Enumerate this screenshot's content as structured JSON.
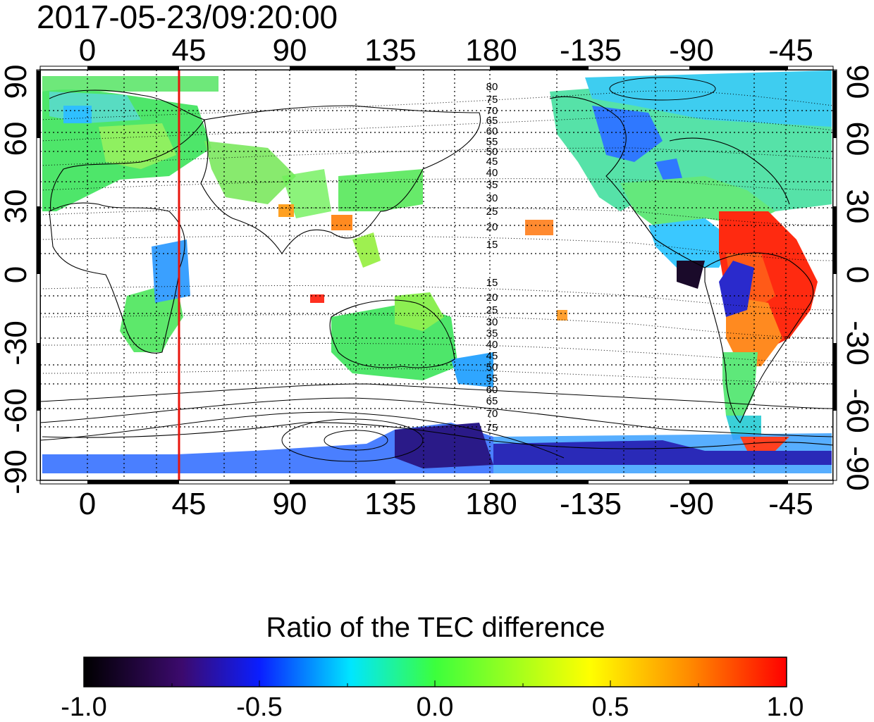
{
  "title": "2017-05-23/09:20:00",
  "map": {
    "top_lon_ticks": [
      "0",
      "45",
      "90",
      "135",
      "180",
      "-135",
      "-90",
      "-45"
    ],
    "bottom_lon_ticks": [
      "0",
      "45",
      "90",
      "135",
      "180",
      "-135",
      "-90",
      "-45"
    ],
    "left_lat_ticks": [
      "90",
      "60",
      "30",
      "0",
      "-30",
      "-60",
      "-90"
    ],
    "right_lat_ticks": [
      "90",
      "60",
      "30",
      "0",
      "-30",
      "-60",
      "-90"
    ],
    "contour_labels_north": [
      "80",
      "75",
      "70",
      "65",
      "60",
      "55",
      "50",
      "45",
      "40",
      "35",
      "30",
      "25",
      "20",
      "15"
    ],
    "contour_labels_south": [
      "15",
      "20",
      "25",
      "30",
      "35",
      "40",
      "45",
      "50",
      "55",
      "60",
      "65",
      "70",
      "75"
    ],
    "marker_longitude": 40,
    "marker_color": "#e8140c"
  },
  "colorbar": {
    "title": "Ratio of the TEC difference",
    "tick_labels": [
      "-1.0",
      "-0.5",
      "0.0",
      "0.5",
      "1.0"
    ],
    "range": [
      -1.0,
      1.0
    ],
    "colors": [
      "#000000",
      "#3c0a6e",
      "#0a1eff",
      "#00e6ff",
      "#3cff3c",
      "#ffff00",
      "#ff8c00",
      "#ff0000"
    ]
  }
}
